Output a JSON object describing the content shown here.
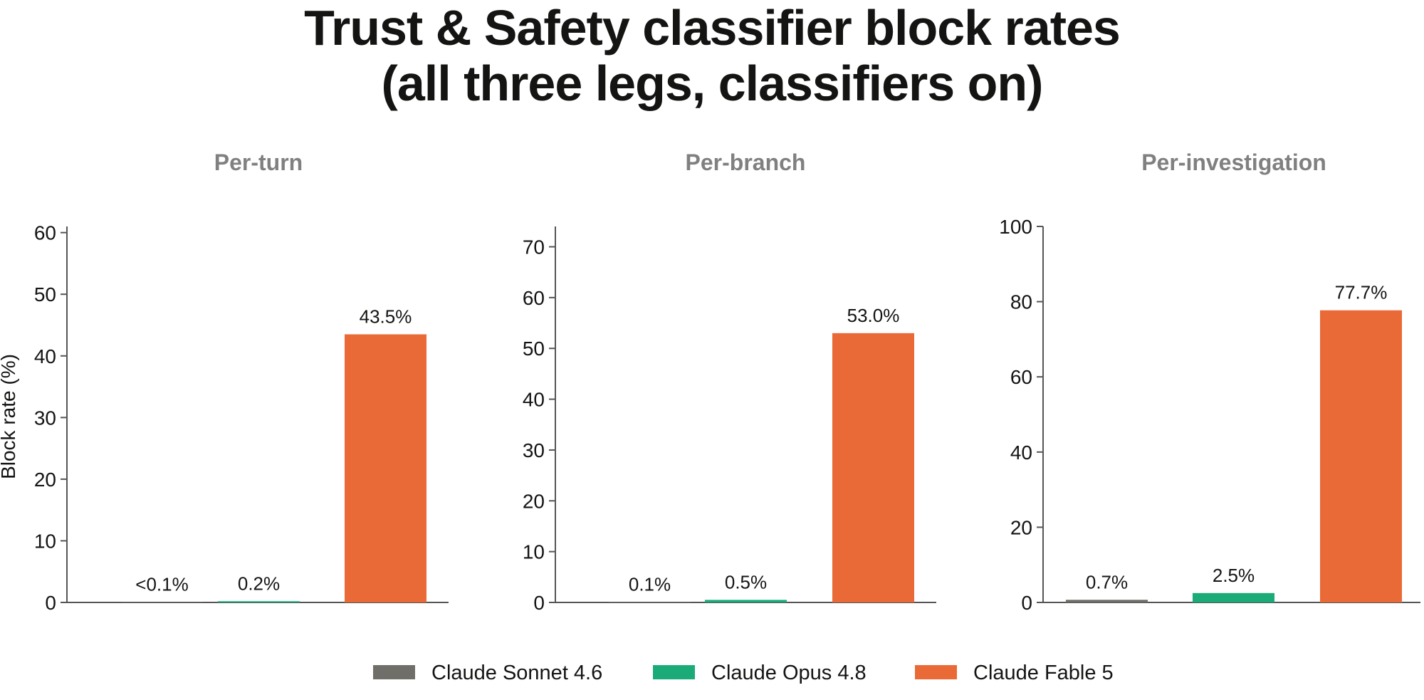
{
  "title_lines": [
    "Trust & Safety classifier block rates",
    "(all three legs, classifiers on)"
  ],
  "colors": {
    "Claude Sonnet 4.6": "#6f6e69",
    "Claude Opus 4.8": "#1aab78",
    "Claude Fable 5": "#e96a36"
  },
  "chart_data": [
    {
      "type": "bar",
      "title": "Per-turn",
      "ylabel": "Block rate (%)",
      "categories": [
        "Claude Sonnet 4.6",
        "Claude Opus 4.8",
        "Claude Fable 5"
      ],
      "values": [
        0.05,
        0.2,
        43.5
      ],
      "data_labels": [
        "<0.1%",
        "0.2%",
        "43.5%"
      ],
      "ylim": [
        0,
        61
      ],
      "yticks": [
        0,
        10,
        20,
        30,
        40,
        50,
        60
      ],
      "grid": false
    },
    {
      "type": "bar",
      "title": "Per-branch",
      "ylabel": "",
      "categories": [
        "Claude Sonnet 4.6",
        "Claude Opus 4.8",
        "Claude Fable 5"
      ],
      "values": [
        0.1,
        0.5,
        53.0
      ],
      "data_labels": [
        "0.1%",
        "0.5%",
        "53.0%"
      ],
      "ylim": [
        0,
        74
      ],
      "yticks": [
        0,
        10,
        20,
        30,
        40,
        50,
        60,
        70
      ],
      "grid": false
    },
    {
      "type": "bar",
      "title": "Per-investigation",
      "ylabel": "",
      "categories": [
        "Claude Sonnet 4.6",
        "Claude Opus 4.8",
        "Claude Fable 5"
      ],
      "values": [
        0.7,
        2.5,
        77.7
      ],
      "data_labels": [
        "0.7%",
        "2.5%",
        "77.7%"
      ],
      "ylim": [
        0,
        100
      ],
      "yticks": [
        0,
        20,
        40,
        60,
        80,
        100
      ],
      "grid": false
    }
  ],
  "legend": {
    "position": "bottom-center",
    "entries": [
      "Claude Sonnet 4.6",
      "Claude Opus 4.8",
      "Claude Fable 5"
    ]
  }
}
